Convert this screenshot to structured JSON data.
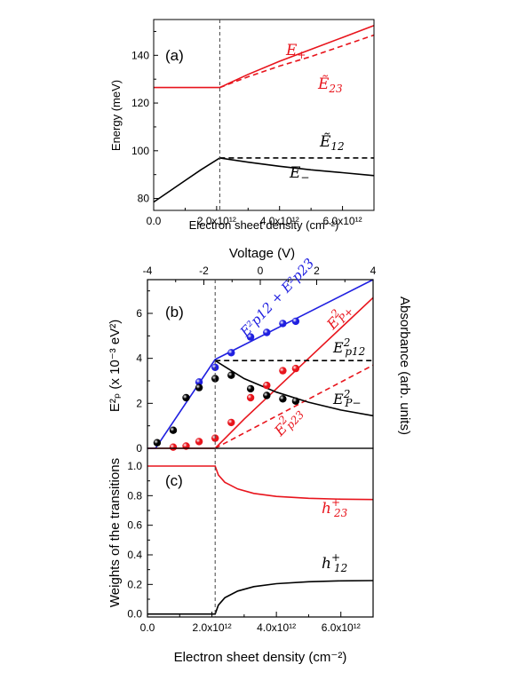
{
  "colors": {
    "red": "#e8141c",
    "blue": "#1f1fe0",
    "black": "#000000"
  },
  "axes": {
    "top_xlabel": "Electron sheet density (cm⁻²)",
    "bottom_xlabel": "Electron sheet density (cm⁻²)",
    "voltage_label": "Voltage (V)",
    "energy_ylabel": "Energy (meV)",
    "ep_ylabel": "E²ₚ (x 10⁻³ eV²)",
    "absorbance_ylabel": "Absorbance (arb. units)",
    "weights_ylabel": "Weights of the transitions",
    "density_ticks": [
      "0.0",
      "2.0x10¹²",
      "4.0x10¹²",
      "6.0x10¹²"
    ],
    "energy_ticks": [
      "80",
      "100",
      "120",
      "140"
    ],
    "voltage_ticks": [
      "-4",
      "-2",
      "0",
      "2",
      "4"
    ],
    "ep_ticks": [
      "0",
      "2",
      "4",
      "6"
    ],
    "weight_ticks": [
      "0.0",
      "0.2",
      "0.4",
      "0.6",
      "0.8",
      "1.0"
    ]
  },
  "panels": {
    "a": "(a)",
    "b": "(b)",
    "c": "(c)"
  },
  "annotations": {
    "a_e_plus": {
      "base": "E",
      "sub": "+"
    },
    "a_e23": {
      "base": "Ẽ",
      "sub": "23"
    },
    "a_e12": {
      "base": "Ẽ",
      "sub": "12"
    },
    "a_e_minus": {
      "base": "E",
      "sub": "−"
    },
    "b_sum": "E²p12 + E²p23",
    "b_ep_plus": {
      "base": "E",
      "sup": "2",
      "sub": "P+"
    },
    "b_ep12": {
      "base": "E",
      "sup": "2",
      "sub": "p12"
    },
    "b_ep_minus": {
      "base": "E",
      "sup": "2",
      "sub": "P−"
    },
    "b_ep23": {
      "base": "E",
      "sup": "2",
      "sub": "p23"
    },
    "c_h23": {
      "base": "h",
      "sup": "+",
      "sub": "23"
    },
    "c_h12": {
      "base": "h",
      "sup": "+",
      "sub": "12"
    }
  },
  "chart_data": [
    {
      "panel": "(a)",
      "type": "line",
      "xlabel": "Electron sheet density (cm⁻²)",
      "ylabel": "Energy (meV)",
      "xlim": [
        0,
        7000000000000.0
      ],
      "ylim": [
        75,
        155
      ],
      "critical_density": 2100000000000.0,
      "series": [
        {
          "name": "E+",
          "style": "solid",
          "color": "red",
          "x": [
            0,
            2100000000000.0,
            3000000000000.0,
            4000000000000.0,
            5000000000000.0,
            6000000000000.0,
            7000000000000.0
          ],
          "y": [
            126.5,
            126.5,
            132,
            137.5,
            142.5,
            147.5,
            152.5
          ]
        },
        {
          "name": "Ẽ23",
          "style": "dashed",
          "color": "red",
          "x": [
            2100000000000.0,
            3000000000000.0,
            4000000000000.0,
            5000000000000.0,
            6000000000000.0,
            7000000000000.0
          ],
          "y": [
            126.5,
            131,
            135.5,
            139.5,
            144,
            148.5
          ]
        },
        {
          "name": "Ẽ12",
          "style": "dashed",
          "color": "black",
          "x": [
            2100000000000.0,
            7000000000000.0
          ],
          "y": [
            97,
            97
          ]
        },
        {
          "name": "E−",
          "style": "solid",
          "color": "black",
          "x": [
            0,
            500000000000.0,
            1000000000000.0,
            1500000000000.0,
            2100000000000.0,
            3000000000000.0,
            4000000000000.0,
            5000000000000.0,
            6000000000000.0,
            7000000000000.0
          ],
          "y": [
            78.5,
            83,
            87.5,
            92,
            97,
            95.2,
            93.5,
            92,
            90.8,
            89.6
          ]
        }
      ]
    },
    {
      "panel": "(b)",
      "type": "scatter",
      "xlabel": "Voltage (V)",
      "ylabel": "E²ₚ (x 10⁻³ eV²)",
      "xlim": [
        0,
        7000000000000.0
      ],
      "ylim": [
        0,
        7.5
      ],
      "critical_density": 2100000000000.0,
      "lines": [
        {
          "name": "E²p12 + E²p23",
          "style": "solid",
          "color": "blue",
          "x": [
            0,
            250000000000.0,
            2100000000000.0,
            7000000000000.0
          ],
          "y": [
            0,
            0,
            3.95,
            7.5
          ]
        },
        {
          "name": "E²P+",
          "style": "solid",
          "color": "red",
          "x": [
            0,
            2100000000000.0,
            3000000000000.0,
            4000000000000.0,
            5000000000000.0,
            6000000000000.0,
            7000000000000.0
          ],
          "y": [
            0,
            0,
            1.3,
            2.65,
            4.0,
            5.35,
            6.7
          ]
        },
        {
          "name": "E²p23",
          "style": "dashed",
          "color": "red",
          "x": [
            2100000000000.0,
            7000000000000.0
          ],
          "y": [
            0,
            3.7
          ]
        },
        {
          "name": "E²p12",
          "style": "dashed",
          "color": "black",
          "x": [
            2100000000000.0,
            7000000000000.0
          ],
          "y": [
            3.9,
            3.9
          ]
        },
        {
          "name": "E²P−",
          "style": "solid",
          "color": "black",
          "x": [
            2100000000000.0,
            3000000000000.0,
            4000000000000.0,
            5000000000000.0,
            6000000000000.0,
            7000000000000.0
          ],
          "y": [
            3.9,
            3.1,
            2.5,
            2.05,
            1.7,
            1.45
          ]
        }
      ],
      "points": [
        {
          "color": "blue",
          "x": [
            1600000000000.0,
            2100000000000.0,
            2600000000000.0,
            3200000000000.0,
            3700000000000.0,
            4200000000000.0,
            4600000000000.0
          ],
          "y": [
            2.95,
            3.6,
            4.25,
            4.95,
            5.15,
            5.55,
            5.65
          ]
        },
        {
          "color": "black",
          "x": [
            300000000000.0,
            800000000000.0,
            1200000000000.0,
            1600000000000.0,
            2100000000000.0,
            2600000000000.0,
            3200000000000.0,
            3700000000000.0,
            4200000000000.0,
            4600000000000.0
          ],
          "y": [
            0.25,
            0.8,
            2.25,
            2.7,
            3.1,
            3.25,
            2.65,
            2.35,
            2.2,
            2.1
          ]
        },
        {
          "color": "red",
          "x": [
            800000000000.0,
            1200000000000.0,
            1600000000000.0,
            2100000000000.0,
            2600000000000.0,
            3200000000000.0,
            3700000000000.0,
            4200000000000.0,
            4600000000000.0
          ],
          "y": [
            0.05,
            0.1,
            0.3,
            0.45,
            1.15,
            2.25,
            2.8,
            3.45,
            3.55
          ]
        }
      ]
    },
    {
      "panel": "(c)",
      "type": "line",
      "xlabel": "Electron sheet density (cm⁻²)",
      "ylabel": "Weights of the transitions",
      "xlim": [
        0,
        7000000000000.0
      ],
      "ylim": [
        -0.02,
        1.12
      ],
      "critical_density": 2100000000000.0,
      "series": [
        {
          "name": "h⁺23",
          "style": "solid",
          "color": "red",
          "x": [
            0,
            2100000000000.0,
            2200000000000.0,
            2400000000000.0,
            2800000000000.0,
            3300000000000.0,
            4000000000000.0,
            5000000000000.0,
            6000000000000.0,
            7000000000000.0
          ],
          "y": [
            1.0,
            1.0,
            0.94,
            0.89,
            0.845,
            0.815,
            0.795,
            0.782,
            0.776,
            0.774
          ]
        },
        {
          "name": "h⁺12",
          "style": "solid",
          "color": "black",
          "x": [
            0,
            2100000000000.0,
            2200000000000.0,
            2400000000000.0,
            2800000000000.0,
            3300000000000.0,
            4000000000000.0,
            5000000000000.0,
            6000000000000.0,
            7000000000000.0
          ],
          "y": [
            0.0,
            0.0,
            0.06,
            0.11,
            0.155,
            0.185,
            0.205,
            0.218,
            0.224,
            0.226
          ]
        }
      ]
    }
  ]
}
